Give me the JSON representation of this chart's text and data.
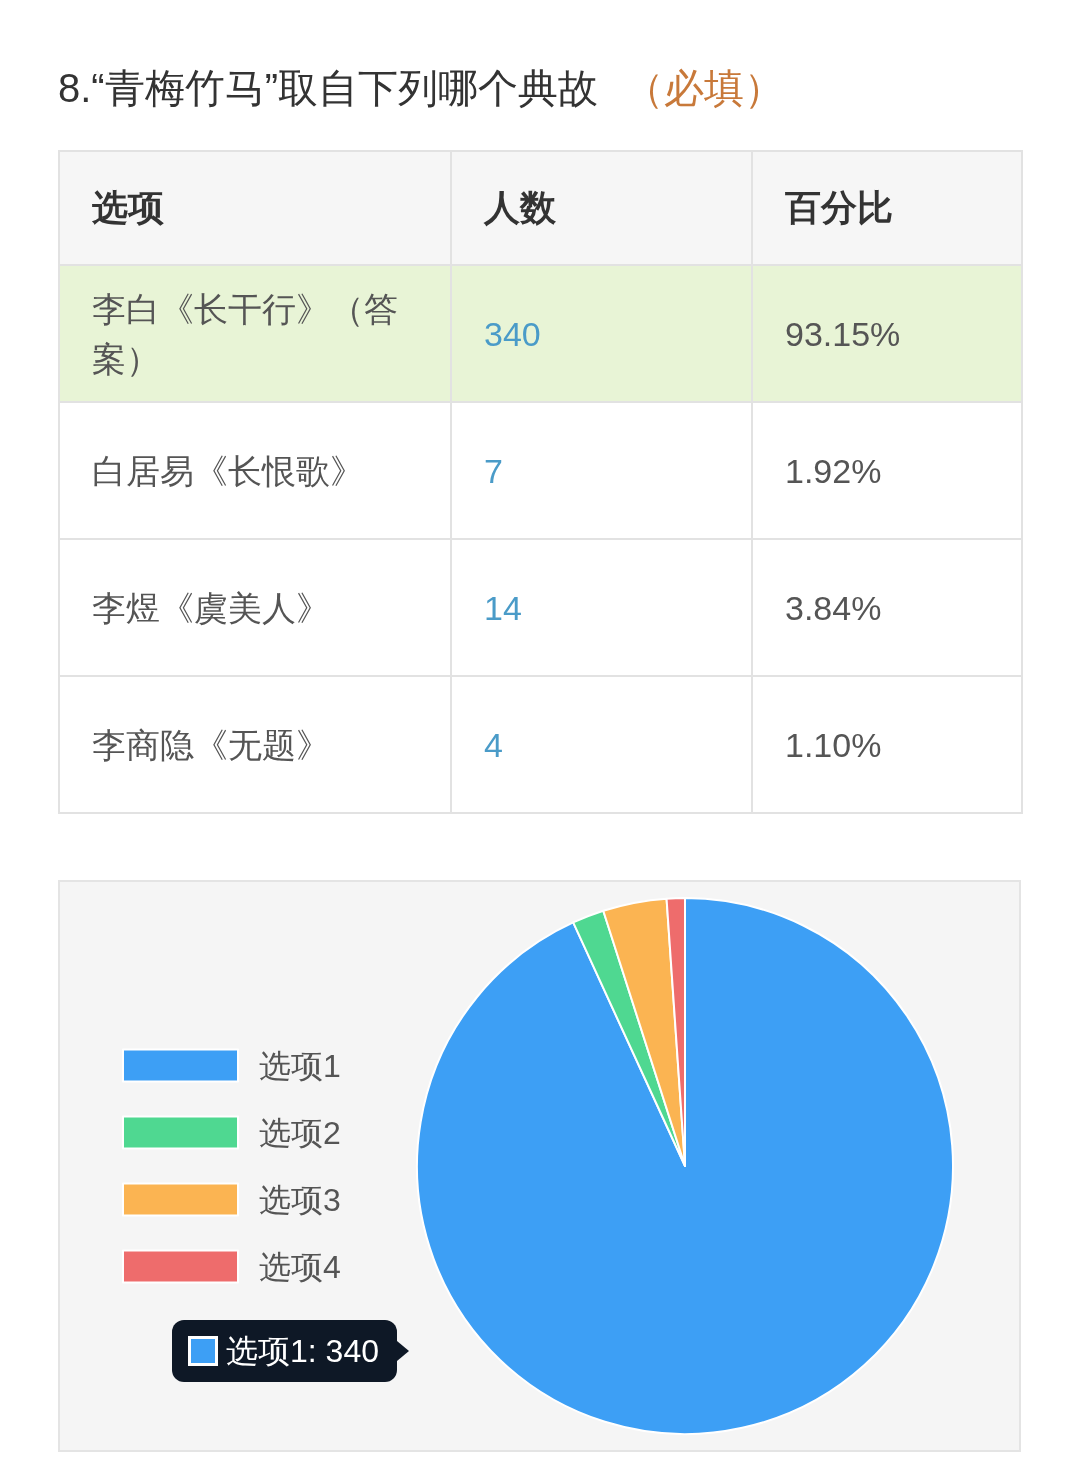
{
  "chart_data": [
    {
      "type": "other",
      "title": "8.“青梅竹马”取自下列哪个典故",
      "subtitle": "（必填）",
      "annotations": [
        "选项",
        "人数",
        "百分比",
        "李白《长干行》（答案）",
        "340",
        "93.15%",
        "白居易《长恨歌》",
        "7",
        "1.92%",
        "李煜《虞美人》",
        "14",
        "3.84%",
        "李商隐《无题》",
        "4",
        "1.10%"
      ]
    },
    {
      "type": "pie",
      "categories": [
        "选项1",
        "选项2",
        "选项3",
        "选项4"
      ],
      "values": [
        340,
        7,
        14,
        4
      ],
      "colors": [
        "#3d9ff5",
        "#4fd891",
        "#fbb452",
        "#ee6c6c"
      ],
      "legend": "left",
      "value_labels": [
        "选项1: 340",
        null,
        null,
        null
      ]
    }
  ]
}
